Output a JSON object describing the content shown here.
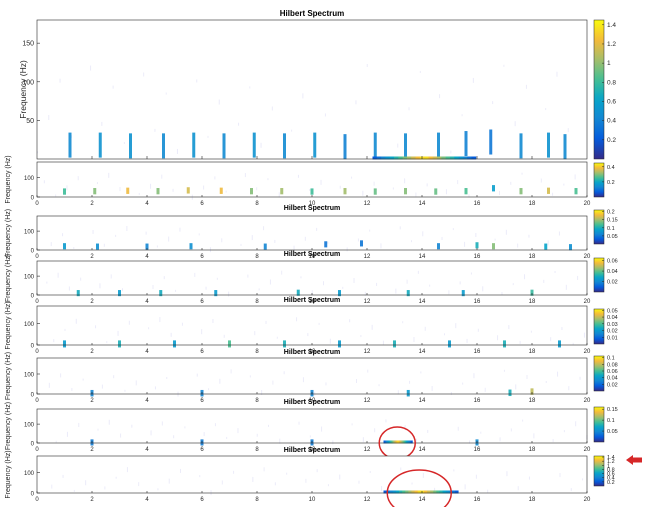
{
  "figure": {
    "background": "#ffffff",
    "annotation_color": "#d62728"
  },
  "chart_data": [
    {
      "type": "heatmap",
      "title": "Hilbert Spectrum",
      "xlabel": "",
      "ylabel": "Frequency (Hz)",
      "xlim": [
        0,
        20
      ],
      "ylim": [
        0,
        180
      ],
      "xticks": [],
      "yticks": [
        "50",
        "100",
        "150"
      ],
      "colorbar": {
        "clim": [
          0,
          1.45
        ],
        "ticks": [
          "0.2",
          "0.4",
          "0.6",
          "0.8",
          "1",
          "1.2",
          "1.4"
        ]
      },
      "blobs": [
        {
          "x": 1.2,
          "f": 18,
          "v": 0.45
        },
        {
          "x": 2.3,
          "f": 18,
          "v": 0.5
        },
        {
          "x": 3.4,
          "f": 17,
          "v": 0.5
        },
        {
          "x": 4.6,
          "f": 17,
          "v": 0.45
        },
        {
          "x": 5.7,
          "f": 18,
          "v": 0.5
        },
        {
          "x": 6.8,
          "f": 17,
          "v": 0.45
        },
        {
          "x": 7.9,
          "f": 18,
          "v": 0.5
        },
        {
          "x": 9.0,
          "f": 17,
          "v": 0.45
        },
        {
          "x": 10.1,
          "f": 18,
          "v": 0.5
        },
        {
          "x": 11.2,
          "f": 16,
          "v": 0.4
        },
        {
          "x": 12.3,
          "f": 18,
          "v": 0.45
        },
        {
          "x": 13.4,
          "f": 17,
          "v": 0.45
        },
        {
          "x": 14.6,
          "f": 18,
          "v": 0.45
        },
        {
          "x": 15.6,
          "f": 20,
          "v": 0.4
        },
        {
          "x": 16.5,
          "f": 22,
          "v": 0.35
        },
        {
          "x": 17.6,
          "f": 17,
          "v": 0.45
        },
        {
          "x": 18.6,
          "f": 18,
          "v": 0.5
        },
        {
          "x": 19.2,
          "f": 16,
          "v": 0.45
        }
      ],
      "bands": [
        {
          "x0": 12.2,
          "x1": 15.8,
          "f": 0,
          "vmax": 1.4
        }
      ]
    },
    {
      "type": "heatmap",
      "title": "",
      "ylabel": "Frequency (Hz)",
      "xlim": [
        0,
        20
      ],
      "ylim": [
        0,
        180
      ],
      "xticks": [
        "0",
        "2",
        "4",
        "6",
        "8",
        "10",
        "12",
        "14",
        "16",
        "18",
        "20"
      ],
      "yticks": [
        "0",
        "100"
      ],
      "colorbar": {
        "clim": [
          0,
          0.45
        ],
        "ticks": [
          "0.2",
          "0.4"
        ]
      },
      "blobs": [
        {
          "x": 1.0,
          "f": 28,
          "v": 0.25
        },
        {
          "x": 2.1,
          "f": 30,
          "v": 0.3
        },
        {
          "x": 3.3,
          "f": 32,
          "v": 0.38
        },
        {
          "x": 4.4,
          "f": 30,
          "v": 0.3
        },
        {
          "x": 5.5,
          "f": 34,
          "v": 0.36
        },
        {
          "x": 6.7,
          "f": 32,
          "v": 0.38
        },
        {
          "x": 7.8,
          "f": 30,
          "v": 0.3
        },
        {
          "x": 8.9,
          "f": 30,
          "v": 0.32
        },
        {
          "x": 10.0,
          "f": 28,
          "v": 0.25
        },
        {
          "x": 11.2,
          "f": 30,
          "v": 0.32
        },
        {
          "x": 12.3,
          "f": 28,
          "v": 0.28
        },
        {
          "x": 13.4,
          "f": 30,
          "v": 0.3
        },
        {
          "x": 14.5,
          "f": 28,
          "v": 0.28
        },
        {
          "x": 15.6,
          "f": 30,
          "v": 0.26
        },
        {
          "x": 16.6,
          "f": 45,
          "v": 0.18
        },
        {
          "x": 17.6,
          "f": 30,
          "v": 0.3
        },
        {
          "x": 18.6,
          "f": 32,
          "v": 0.36
        },
        {
          "x": 19.6,
          "f": 30,
          "v": 0.26
        }
      ],
      "bands": []
    },
    {
      "type": "heatmap",
      "title": "Hilbert Spectrum",
      "ylabel": "Frequency (Hz)",
      "xlim": [
        0,
        20
      ],
      "ylim": [
        0,
        180
      ],
      "xticks": [
        "0",
        "2",
        "4",
        "6",
        "8",
        "10",
        "12",
        "14",
        "16",
        "18",
        "20"
      ],
      "yticks": [
        "0",
        "100"
      ],
      "colorbar": {
        "clim": [
          0,
          0.21
        ],
        "ticks": [
          "0.05",
          "0.1",
          "0.15",
          "0.2"
        ]
      },
      "blobs": [
        {
          "x": 1.0,
          "f": 20,
          "v": 0.08
        },
        {
          "x": 2.2,
          "f": 18,
          "v": 0.07
        },
        {
          "x": 4.0,
          "f": 18,
          "v": 0.06
        },
        {
          "x": 5.6,
          "f": 20,
          "v": 0.07
        },
        {
          "x": 8.3,
          "f": 18,
          "v": 0.06
        },
        {
          "x": 10.5,
          "f": 30,
          "v": 0.05
        },
        {
          "x": 11.8,
          "f": 35,
          "v": 0.05
        },
        {
          "x": 14.6,
          "f": 20,
          "v": 0.06
        },
        {
          "x": 16.0,
          "f": 25,
          "v": 0.1
        },
        {
          "x": 16.6,
          "f": 20,
          "v": 0.14
        },
        {
          "x": 18.5,
          "f": 18,
          "v": 0.09
        },
        {
          "x": 19.4,
          "f": 15,
          "v": 0.07
        }
      ],
      "bands": []
    },
    {
      "type": "heatmap",
      "title": "Hilbert Spectrum",
      "ylabel": "Frequency (Hz)",
      "xlim": [
        0,
        20
      ],
      "ylim": [
        0,
        180
      ],
      "xticks": [
        "0",
        "2",
        "4",
        "6",
        "8",
        "10",
        "12",
        "14",
        "16",
        "18",
        "20"
      ],
      "yticks": [
        "0",
        "100"
      ],
      "colorbar": {
        "clim": [
          0,
          0.065
        ],
        "ticks": [
          "0.02",
          "0.04",
          "0.06"
        ]
      },
      "blobs": [
        {
          "x": 1.5,
          "f": 10,
          "v": 0.03
        },
        {
          "x": 3.0,
          "f": 10,
          "v": 0.025
        },
        {
          "x": 4.5,
          "f": 10,
          "v": 0.03
        },
        {
          "x": 6.5,
          "f": 10,
          "v": 0.025
        },
        {
          "x": 9.5,
          "f": 12,
          "v": 0.03
        },
        {
          "x": 11.0,
          "f": 10,
          "v": 0.025
        },
        {
          "x": 13.5,
          "f": 10,
          "v": 0.03
        },
        {
          "x": 15.5,
          "f": 10,
          "v": 0.025
        },
        {
          "x": 18.0,
          "f": 12,
          "v": 0.035
        }
      ],
      "bands": []
    },
    {
      "type": "heatmap",
      "title": "Hilbert Spectrum",
      "ylabel": "Frequency (Hz)",
      "xlim": [
        0,
        20
      ],
      "ylim": [
        0,
        180
      ],
      "xticks": [
        "0",
        "2",
        "4",
        "6",
        "8",
        "10",
        "12",
        "14",
        "16",
        "18",
        "20"
      ],
      "yticks": [
        "0",
        "100"
      ],
      "colorbar": {
        "clim": [
          0,
          0.052
        ],
        "ticks": [
          "0.01",
          "0.02",
          "0.03",
          "0.04",
          "0.05"
        ]
      },
      "blobs": [
        {
          "x": 1.0,
          "f": 5,
          "v": 0.02
        },
        {
          "x": 3.0,
          "f": 5,
          "v": 0.025
        },
        {
          "x": 5.0,
          "f": 5,
          "v": 0.02
        },
        {
          "x": 7.0,
          "f": 5,
          "v": 0.03
        },
        {
          "x": 9.0,
          "f": 5,
          "v": 0.025
        },
        {
          "x": 11.0,
          "f": 5,
          "v": 0.02
        },
        {
          "x": 13.0,
          "f": 5,
          "v": 0.025
        },
        {
          "x": 15.0,
          "f": 5,
          "v": 0.02
        },
        {
          "x": 17.0,
          "f": 5,
          "v": 0.025
        },
        {
          "x": 19.0,
          "f": 5,
          "v": 0.02
        }
      ],
      "bands": []
    },
    {
      "type": "heatmap",
      "title": "Hilbert Spectrum",
      "ylabel": "Frequency (Hz)",
      "xlim": [
        0,
        20
      ],
      "ylim": [
        0,
        180
      ],
      "xticks": [
        "0",
        "2",
        "4",
        "6",
        "8",
        "10",
        "12",
        "14",
        "16",
        "18",
        "20"
      ],
      "yticks": [
        "0",
        "100"
      ],
      "colorbar": {
        "clim": [
          0,
          0.105
        ],
        "ticks": [
          "0.02",
          "0.04",
          "0.06",
          "0.08",
          "0.1"
        ]
      },
      "blobs": [
        {
          "x": 2.0,
          "f": 4,
          "v": 0.03
        },
        {
          "x": 6.0,
          "f": 4,
          "v": 0.03
        },
        {
          "x": 10.0,
          "f": 4,
          "v": 0.03
        },
        {
          "x": 13.5,
          "f": 4,
          "v": 0.04
        },
        {
          "x": 17.2,
          "f": 6,
          "v": 0.05
        },
        {
          "x": 18.0,
          "f": 12,
          "v": 0.08
        }
      ],
      "bands": []
    },
    {
      "type": "heatmap",
      "title": "Hilbert Spectrum",
      "ylabel": "Frequency (Hz)",
      "xlim": [
        0,
        20
      ],
      "ylim": [
        0,
        180
      ],
      "xticks": [
        "0",
        "2",
        "4",
        "6",
        "8",
        "10",
        "12",
        "14",
        "16",
        "18",
        "20"
      ],
      "yticks": [
        "0",
        "100"
      ],
      "colorbar": {
        "clim": [
          0,
          0.16
        ],
        "ticks": [
          "0.05",
          "0.1",
          "0.15"
        ]
      },
      "blobs": [
        {
          "x": 2.0,
          "f": 3,
          "v": 0.04
        },
        {
          "x": 6.0,
          "f": 3,
          "v": 0.04
        },
        {
          "x": 10.0,
          "f": 3,
          "v": 0.04
        },
        {
          "x": 16.0,
          "f": 3,
          "v": 0.05
        }
      ],
      "bands": [
        {
          "x0": 12.6,
          "x1": 13.6,
          "f": 0,
          "vmax": 0.15
        }
      ],
      "annotation": {
        "shape": "circle",
        "x": 13.1,
        "f": 0
      }
    },
    {
      "type": "heatmap",
      "title": "Hilbert Spectrum",
      "ylabel": "Frequency (Hz)",
      "xlim": [
        0,
        20
      ],
      "ylim": [
        0,
        180
      ],
      "xticks": [
        "0",
        "2",
        "4",
        "6",
        "8",
        "10",
        "12",
        "14",
        "16",
        "18",
        "20"
      ],
      "yticks": [
        "0",
        "100"
      ],
      "colorbar": {
        "clim": [
          0,
          1.45
        ],
        "ticks": [
          "0.2",
          "0.4",
          "0.6",
          "0.8",
          "1",
          "1.2",
          "1.4"
        ]
      },
      "blobs": [],
      "bands": [
        {
          "x0": 12.6,
          "x1": 15.2,
          "f": 0,
          "vmax": 1.4
        }
      ],
      "annotation": {
        "shape": "circle",
        "x": 13.9,
        "f": 0
      },
      "colorbar_arrow": true
    }
  ]
}
